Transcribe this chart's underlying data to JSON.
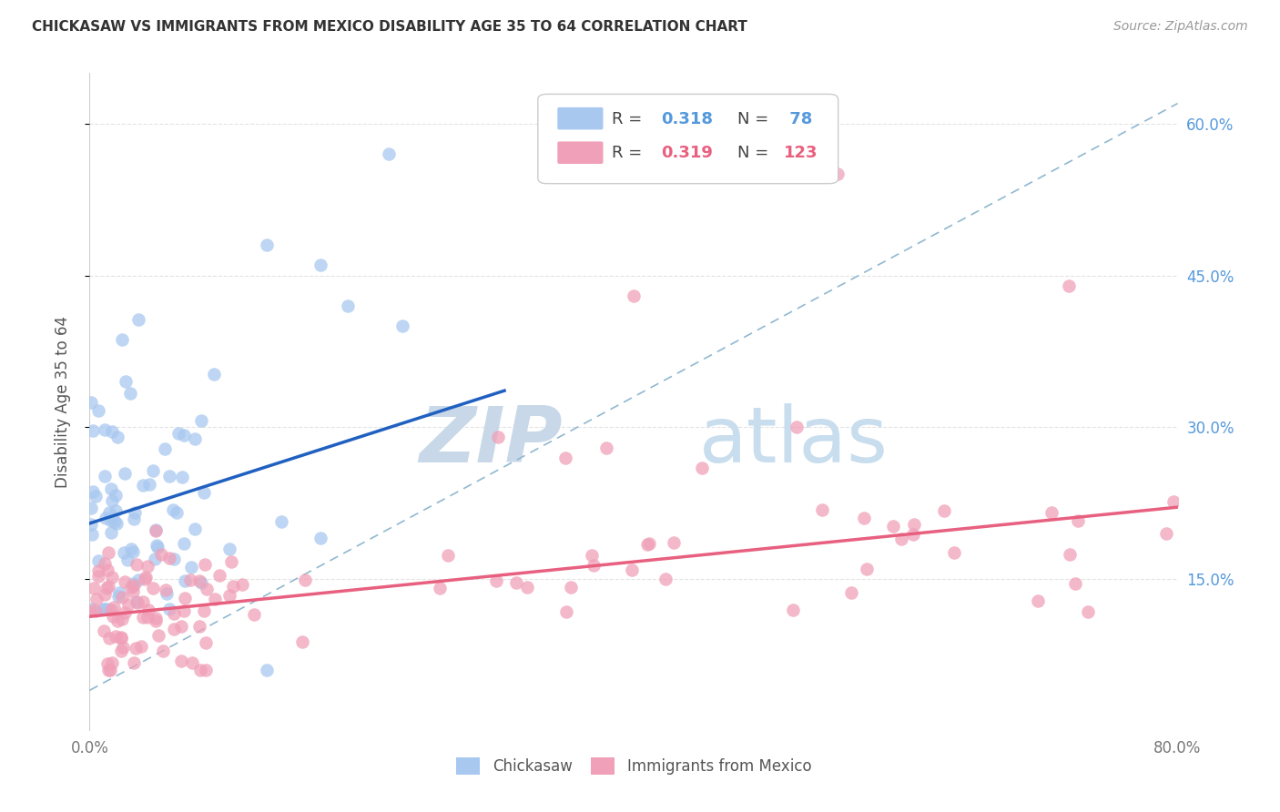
{
  "title": "CHICKASAW VS IMMIGRANTS FROM MEXICO DISABILITY AGE 35 TO 64 CORRELATION CHART",
  "source": "Source: ZipAtlas.com",
  "ylabel": "Disability Age 35 to 64",
  "x_min": 0.0,
  "x_max": 0.8,
  "y_min": 0.0,
  "y_max": 0.65,
  "x_tick_positions": [
    0.0,
    0.2,
    0.4,
    0.6,
    0.8
  ],
  "x_tick_labels": [
    "0.0%",
    "",
    "",
    "",
    "80.0%"
  ],
  "y_tick_positions": [
    0.15,
    0.3,
    0.45,
    0.6
  ],
  "y_tick_labels": [
    "15.0%",
    "30.0%",
    "45.0%",
    "60.0%"
  ],
  "legend_r1": "R = 0.318",
  "legend_n1": "N =  78",
  "legend_r2": "R = 0.319",
  "legend_n2": "N = 123",
  "color_blue_scatter": "#A8C8F0",
  "color_pink_scatter": "#F0A0B8",
  "color_blue_line": "#2060C0",
  "color_pink_line": "#E86080",
  "color_dashed": "#90B8D0",
  "color_right_ticks": "#5599DD",
  "color_pink_legend": "#E86080",
  "watermark_zip_color": "#C8D8E8",
  "watermark_atlas_color": "#C8DDED",
  "background_color": "#FFFFFF",
  "grid_color": "#DDDDDD",
  "title_color": "#333333",
  "source_color": "#999999",
  "ylabel_color": "#555555",
  "tick_label_color": "#777777"
}
